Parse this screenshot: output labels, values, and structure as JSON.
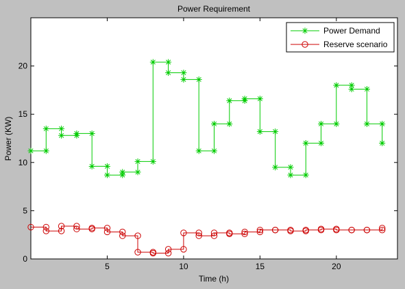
{
  "chart_data": {
    "type": "line",
    "title": "Power Requirement",
    "xlabel": "Time (h)",
    "ylabel": "Power (KW)",
    "xlim": [
      0,
      24
    ],
    "ylim": [
      0,
      25
    ],
    "xticks": [
      5,
      10,
      15,
      20
    ],
    "yticks": [
      0,
      5,
      10,
      15,
      20
    ],
    "x_tick_labels": [
      "5",
      "10",
      "15",
      "20"
    ],
    "y_tick_labels": [
      "0",
      "5",
      "10",
      "15",
      "20"
    ],
    "grid": false,
    "legend_position": "top-right",
    "series": [
      {
        "name": "Power Demand",
        "color": "#00cc00",
        "marker": "asterisk",
        "step": true,
        "x": [
          0,
          1,
          1,
          2,
          2,
          3,
          3,
          4,
          4,
          5,
          5,
          6,
          6,
          7,
          7,
          8,
          8,
          9,
          9,
          10,
          10,
          11,
          11,
          12,
          12,
          13,
          13,
          14,
          14,
          15,
          15,
          16,
          16,
          17,
          17,
          18,
          18,
          19,
          19,
          20,
          20,
          21,
          21,
          22,
          22,
          23,
          23
        ],
        "y": [
          11.2,
          11.2,
          13.5,
          13.5,
          12.8,
          12.8,
          13.0,
          13.0,
          9.6,
          9.6,
          8.7,
          8.7,
          9.0,
          9.0,
          10.1,
          10.1,
          20.4,
          20.4,
          19.3,
          19.3,
          18.6,
          18.6,
          11.2,
          11.2,
          14.0,
          14.0,
          16.4,
          16.4,
          16.6,
          16.6,
          13.2,
          13.2,
          9.5,
          9.5,
          8.7,
          8.7,
          12.0,
          12.0,
          14.0,
          14.0,
          18.0,
          18.0,
          17.6,
          17.6,
          14.0,
          14.0,
          12.0
        ]
      },
      {
        "name": "Reserve scenario",
        "color": "#cc0000",
        "marker": "circle",
        "step": true,
        "x": [
          0,
          1,
          1,
          2,
          2,
          3,
          3,
          4,
          4,
          5,
          5,
          6,
          6,
          7,
          7,
          8,
          8,
          9,
          9,
          10,
          10,
          11,
          11,
          12,
          12,
          13,
          13,
          14,
          14,
          15,
          15,
          16,
          16,
          17,
          17,
          18,
          18,
          19,
          19,
          20,
          20,
          21,
          21,
          22,
          22,
          23,
          23
        ],
        "y": [
          3.3,
          3.3,
          2.9,
          2.9,
          3.4,
          3.4,
          3.1,
          3.1,
          3.2,
          3.2,
          2.8,
          2.8,
          2.4,
          2.4,
          0.7,
          0.7,
          0.6,
          0.6,
          1.0,
          1.0,
          2.7,
          2.7,
          2.4,
          2.4,
          2.7,
          2.7,
          2.6,
          2.6,
          2.8,
          2.8,
          3.0,
          3.0,
          3.0,
          3.0,
          2.9,
          2.9,
          3.0,
          3.0,
          3.1,
          3.1,
          3.0,
          3.0,
          3.0,
          3.0,
          3.0,
          3.0,
          3.2
        ]
      }
    ]
  }
}
